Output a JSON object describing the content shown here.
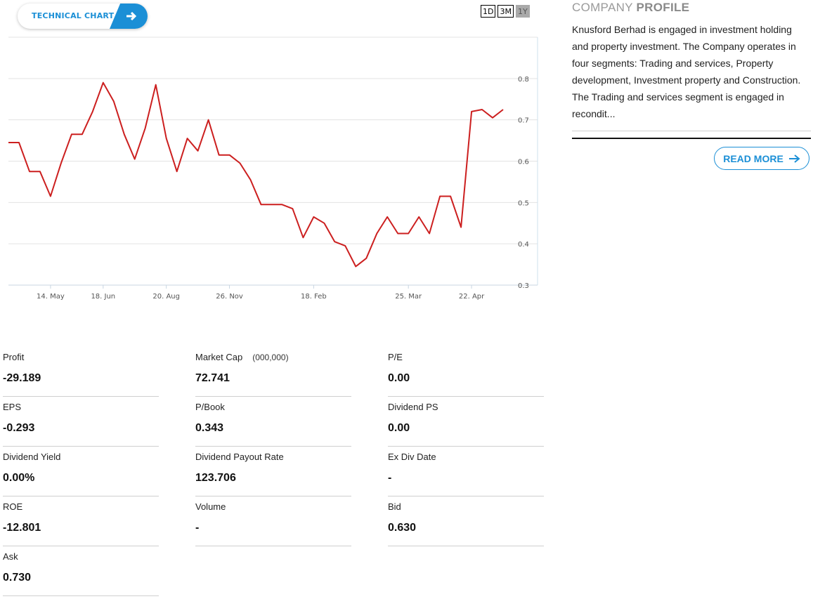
{
  "technical_chart": {
    "label": "TECHNICAL CHART",
    "arrow_icon": "arrow-right-icon"
  },
  "range_buttons": [
    {
      "label": "1D",
      "active": false
    },
    {
      "label": "3M",
      "active": false
    },
    {
      "label": "1Y",
      "active": true
    }
  ],
  "chart_data": {
    "type": "line",
    "title": "",
    "xlabel": "",
    "ylabel": "",
    "ylim": [
      0.3,
      0.9
    ],
    "y_ticks": [
      0.3,
      0.4,
      0.5,
      0.6,
      0.7,
      0.8
    ],
    "x_tick_labels": [
      {
        "label": "14. May",
        "index": 4
      },
      {
        "label": "18. Jun",
        "index": 9
      },
      {
        "label": "20. Aug",
        "index": 15
      },
      {
        "label": "26. Nov",
        "index": 21
      },
      {
        "label": "18. Feb",
        "index": 29
      },
      {
        "label": "25. Mar",
        "index": 38
      },
      {
        "label": "22. Apr",
        "index": 44
      }
    ],
    "line_color": "#cc1f1f",
    "grid": true,
    "series": [
      {
        "values": [
          0.645,
          0.645,
          0.575,
          0.575,
          0.515,
          0.595,
          0.665,
          0.665,
          0.72,
          0.79,
          0.745,
          0.665,
          0.605,
          0.68,
          0.785,
          0.655,
          0.575,
          0.655,
          0.625,
          0.7,
          0.615,
          0.615,
          0.595,
          0.555,
          0.495,
          0.495,
          0.495,
          0.485,
          0.415,
          0.465,
          0.45,
          0.405,
          0.395,
          0.345,
          0.365,
          0.425,
          0.465,
          0.425,
          0.425,
          0.465,
          0.425,
          0.515,
          0.515,
          0.44,
          0.72,
          0.725,
          0.705,
          0.725
        ]
      }
    ]
  },
  "profile": {
    "title_light": "COMPANY ",
    "title_bold": "PROFILE",
    "text": "Knusford Berhad is engaged in investment holding and property investment. The Company operates in four segments: Trading and services, Property development, Investment property and Construction. The Trading and services segment is engaged in recondit...",
    "read_more": "READ MORE",
    "read_more_icon": "arrow-right-icon"
  },
  "stats": [
    {
      "label": "Profit",
      "value": "-29.189"
    },
    {
      "label": "Market Cap",
      "unit": "(000,000)",
      "value": "72.741"
    },
    {
      "label": "P/E",
      "value": "0.00"
    },
    {
      "label": "EPS",
      "value": "-0.293"
    },
    {
      "label": "P/Book",
      "value": "0.343"
    },
    {
      "label": "Dividend PS",
      "value": "0.00"
    },
    {
      "label": "Dividend Yield",
      "value": "0.00%"
    },
    {
      "label": "Dividend Payout Rate",
      "value": "123.706"
    },
    {
      "label": "Ex Div Date",
      "value": "-"
    },
    {
      "label": "ROE",
      "value": "-12.801"
    },
    {
      "label": "Volume",
      "value": "-"
    },
    {
      "label": "Bid",
      "value": "0.630"
    },
    {
      "label": "Ask",
      "value": "0.730"
    }
  ]
}
